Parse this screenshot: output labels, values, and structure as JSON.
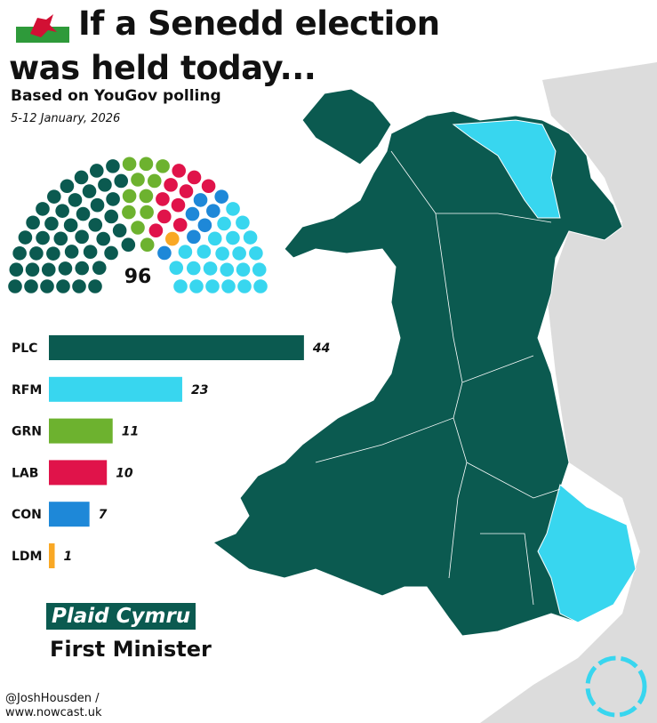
{
  "chart_data": {
    "type": "bar",
    "orientation": "horizontal",
    "title": "If a Senedd election was held today...",
    "subtitle": "Based on YouGov polling",
    "date": "5-12 January, 2026",
    "total_seats": 96,
    "categories": [
      "PLC",
      "RFM",
      "GRN",
      "LAB",
      "CON",
      "LDM"
    ],
    "values": [
      44,
      23,
      11,
      10,
      7,
      1
    ],
    "colors": [
      "#0b5a50",
      "#38d6ef",
      "#6db22f",
      "#e0134a",
      "#1e88d8",
      "#f9a825"
    ],
    "winner": "Plaid Cymru",
    "winner_role": "First Minister",
    "credit": [
      "@JoshHousden /",
      "www.nowcast.uk"
    ]
  }
}
